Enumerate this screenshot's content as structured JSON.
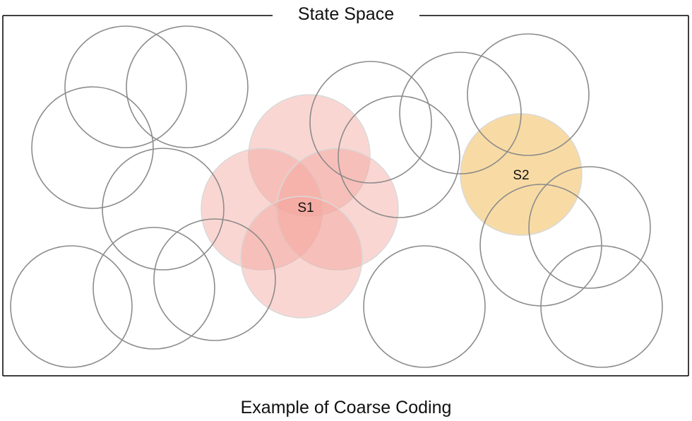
{
  "diagram": {
    "frame_title": "State Space",
    "caption": "Example of Coarse Coding",
    "states": [
      {
        "label": "S1"
      },
      {
        "label": "S2"
      }
    ],
    "colors": {
      "circle_outline": "#8c8c8c",
      "s1_fill": "#f4a49c",
      "s2_fill": "#f6cf86",
      "frame_stroke": "#000000"
    }
  }
}
